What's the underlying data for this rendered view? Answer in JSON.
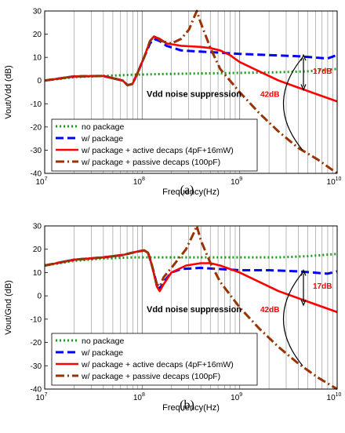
{
  "chart_data": [
    {
      "type": "line",
      "ylabel": "Vout/Vdd (dB)",
      "xlabel": "Frequency(Hz)",
      "xscale": "log",
      "xlim": [
        10000000,
        10000000000
      ],
      "ylim": [
        -40,
        30
      ],
      "yticks": [
        -40,
        -30,
        -20,
        -10,
        0,
        10,
        20,
        30
      ],
      "xticks": [
        {
          "base": "10",
          "exp": "7"
        },
        {
          "base": "10",
          "exp": "8"
        },
        {
          "base": "10",
          "exp": "9"
        },
        {
          "base": "10",
          "exp": "10"
        }
      ],
      "grid": true,
      "legend_position": "bottom-left",
      "caption": "(a)",
      "annotations": {
        "suppression": "Vdd noise suppression",
        "gap_small": "17dB",
        "gap_large": "42dB"
      },
      "series": [
        {
          "name": "no package",
          "color": "#1a9c1a",
          "style": "dotted",
          "points": [
            [
              7.0,
              0
            ],
            [
              7.3,
              1.5
            ],
            [
              7.6,
              2
            ],
            [
              7.9,
              2.5
            ],
            [
              8.2,
              2.8
            ],
            [
              8.5,
              3
            ],
            [
              8.8,
              3.2
            ],
            [
              9.1,
              3.4
            ],
            [
              9.4,
              3.6
            ],
            [
              9.7,
              4
            ],
            [
              10.0,
              5
            ]
          ]
        },
        {
          "name": "w/ package",
          "color": "#0000ff",
          "style": "dashed",
          "points": [
            [
              7.0,
              0
            ],
            [
              7.3,
              1.8
            ],
            [
              7.6,
              2
            ],
            [
              7.8,
              0
            ],
            [
              7.85,
              -2
            ],
            [
              7.9,
              -1.5
            ],
            [
              7.95,
              3
            ],
            [
              8.02,
              10
            ],
            [
              8.08,
              16
            ],
            [
              8.12,
              18
            ],
            [
              8.18,
              17
            ],
            [
              8.25,
              15
            ],
            [
              8.4,
              13
            ],
            [
              8.6,
              12.5
            ],
            [
              8.8,
              12
            ],
            [
              9.0,
              11.5
            ],
            [
              9.3,
              11
            ],
            [
              9.6,
              10.5
            ],
            [
              9.75,
              10
            ],
            [
              9.9,
              9.5
            ],
            [
              10.0,
              11
            ]
          ]
        },
        {
          "name": "w/ package + active decaps (4pF+16mW)",
          "color": "#ff0000",
          "style": "solid",
          "points": [
            [
              7.0,
              0
            ],
            [
              7.3,
              1.8
            ],
            [
              7.6,
              2
            ],
            [
              7.8,
              0
            ],
            [
              7.85,
              -2
            ],
            [
              7.9,
              -1.5
            ],
            [
              7.95,
              3
            ],
            [
              8.02,
              10
            ],
            [
              8.08,
              17
            ],
            [
              8.12,
              19
            ],
            [
              8.18,
              18
            ],
            [
              8.25,
              16
            ],
            [
              8.4,
              15
            ],
            [
              8.6,
              14.5
            ],
            [
              8.7,
              14
            ],
            [
              8.8,
              13
            ],
            [
              8.9,
              11
            ],
            [
              9.0,
              8
            ],
            [
              9.2,
              4
            ],
            [
              9.4,
              0
            ],
            [
              9.6,
              -3
            ],
            [
              9.8,
              -6
            ],
            [
              10.0,
              -9
            ]
          ]
        },
        {
          "name": "w/ package + passive decaps (100pF)",
          "color": "#993300",
          "style": "dashdot",
          "points": [
            [
              7.0,
              0
            ],
            [
              7.3,
              1.8
            ],
            [
              7.6,
              2
            ],
            [
              7.8,
              0
            ],
            [
              7.85,
              -2
            ],
            [
              7.9,
              -1.5
            ],
            [
              7.95,
              3
            ],
            [
              8.02,
              10
            ],
            [
              8.08,
              17
            ],
            [
              8.12,
              19
            ],
            [
              8.2,
              17
            ],
            [
              8.3,
              16
            ],
            [
              8.4,
              18
            ],
            [
              8.48,
              22
            ],
            [
              8.53,
              27
            ],
            [
              8.56,
              30
            ],
            [
              8.6,
              25
            ],
            [
              8.7,
              14
            ],
            [
              8.8,
              5
            ],
            [
              9.0,
              -5
            ],
            [
              9.2,
              -14
            ],
            [
              9.4,
              -22
            ],
            [
              9.6,
              -29
            ],
            [
              9.8,
              -34
            ],
            [
              10.0,
              -40
            ]
          ]
        }
      ]
    },
    {
      "type": "line",
      "ylabel": "Vout/Gnd (dB)",
      "xlabel": "Frequency(Hz)",
      "xscale": "log",
      "xlim": [
        10000000,
        10000000000
      ],
      "ylim": [
        -40,
        30
      ],
      "yticks": [
        -40,
        -30,
        -20,
        -10,
        0,
        10,
        20,
        30
      ],
      "xticks": [
        {
          "base": "10",
          "exp": "7"
        },
        {
          "base": "10",
          "exp": "8"
        },
        {
          "base": "10",
          "exp": "9"
        },
        {
          "base": "10",
          "exp": "10"
        }
      ],
      "grid": true,
      "legend_position": "bottom-left",
      "caption": "(b)",
      "annotations": {
        "suppression": "Vdd noise suppression",
        "gap_small": "17dB",
        "gap_large": "42dB"
      },
      "series": [
        {
          "name": "no package",
          "color": "#1a9c1a",
          "style": "dotted",
          "points": [
            [
              7.0,
              13
            ],
            [
              7.3,
              15
            ],
            [
              7.6,
              16
            ],
            [
              7.9,
              16.5
            ],
            [
              8.2,
              16.5
            ],
            [
              8.5,
              16.5
            ],
            [
              8.8,
              16.5
            ],
            [
              9.1,
              16.5
            ],
            [
              9.4,
              16.5
            ],
            [
              9.7,
              17
            ],
            [
              10.0,
              18
            ]
          ]
        },
        {
          "name": "w/ package",
          "color": "#0000ff",
          "style": "dashed",
          "points": [
            [
              7.0,
              13
            ],
            [
              7.3,
              15.5
            ],
            [
              7.6,
              16.5
            ],
            [
              7.8,
              17.5
            ],
            [
              7.95,
              19
            ],
            [
              8.02,
              19.5
            ],
            [
              8.06,
              18.5
            ],
            [
              8.1,
              13
            ],
            [
              8.15,
              5
            ],
            [
              8.18,
              3
            ],
            [
              8.22,
              6
            ],
            [
              8.3,
              10
            ],
            [
              8.4,
              11.5
            ],
            [
              8.6,
              12
            ],
            [
              8.8,
              11.5
            ],
            [
              9.0,
              11
            ],
            [
              9.3,
              11
            ],
            [
              9.6,
              10.5
            ],
            [
              9.75,
              10
            ],
            [
              9.9,
              9.5
            ],
            [
              10.0,
              10.5
            ]
          ]
        },
        {
          "name": "w/ package + active decaps (4pF+16mW)",
          "color": "#ff0000",
          "style": "solid",
          "points": [
            [
              7.0,
              13
            ],
            [
              7.3,
              15.5
            ],
            [
              7.6,
              16.5
            ],
            [
              7.8,
              17.5
            ],
            [
              7.95,
              19
            ],
            [
              8.02,
              19.5
            ],
            [
              8.06,
              18.5
            ],
            [
              8.1,
              13
            ],
            [
              8.15,
              4
            ],
            [
              8.18,
              2
            ],
            [
              8.22,
              5
            ],
            [
              8.3,
              10
            ],
            [
              8.45,
              13
            ],
            [
              8.6,
              14
            ],
            [
              8.7,
              14
            ],
            [
              8.8,
              13
            ],
            [
              9.0,
              10
            ],
            [
              9.2,
              6
            ],
            [
              9.4,
              2
            ],
            [
              9.6,
              -1
            ],
            [
              9.8,
              -4
            ],
            [
              10.0,
              -7
            ]
          ]
        },
        {
          "name": "w/ package + passive decaps (100pF)",
          "color": "#993300",
          "style": "dashdot",
          "points": [
            [
              7.0,
              13
            ],
            [
              7.3,
              15.5
            ],
            [
              7.6,
              16.5
            ],
            [
              7.8,
              17.5
            ],
            [
              7.95,
              19
            ],
            [
              8.02,
              19.5
            ],
            [
              8.06,
              18.5
            ],
            [
              8.1,
              13
            ],
            [
              8.15,
              5
            ],
            [
              8.18,
              4
            ],
            [
              8.22,
              8
            ],
            [
              8.3,
              12
            ],
            [
              8.45,
              20
            ],
            [
              8.53,
              27
            ],
            [
              8.56,
              30
            ],
            [
              8.6,
              24
            ],
            [
              8.7,
              14
            ],
            [
              8.8,
              6
            ],
            [
              9.0,
              -5
            ],
            [
              9.2,
              -14
            ],
            [
              9.4,
              -22
            ],
            [
              9.6,
              -29
            ],
            [
              9.8,
              -35
            ],
            [
              10.0,
              -40
            ]
          ]
        }
      ]
    }
  ]
}
